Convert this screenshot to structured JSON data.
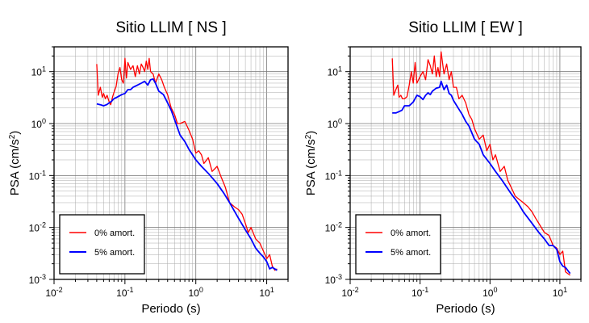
{
  "chart_data": [
    {
      "type": "line",
      "title": "Sitio LLIM [ NS ]",
      "xlabel": "Periodo (s)",
      "ylabel_text": "PSA (cm/s",
      "ylabel_sup": "2",
      "ylabel_close": ")",
      "x_scale": "log",
      "y_scale": "log",
      "xlim": [
        0.01,
        20
      ],
      "ylim": [
        0.001,
        30
      ],
      "grid": true,
      "legend_position": "bottom-left",
      "x_tick_labels": [
        {
          "value": 0.01,
          "base": "10",
          "exp": "-2"
        },
        {
          "value": 0.1,
          "base": "10",
          "exp": "-1"
        },
        {
          "value": 1,
          "base": "10",
          "exp": "0"
        },
        {
          "value": 10,
          "base": "10",
          "exp": "1"
        }
      ],
      "y_tick_labels": [
        {
          "value": 0.001,
          "base": "10",
          "exp": "-3"
        },
        {
          "value": 0.01,
          "base": "10",
          "exp": "-2"
        },
        {
          "value": 0.1,
          "base": "10",
          "exp": "-1"
        },
        {
          "value": 1,
          "base": "10",
          "exp": "0"
        },
        {
          "value": 10,
          "base": "10",
          "exp": "1"
        }
      ],
      "series": [
        {
          "name": "0% amort.",
          "color": "#ff0000",
          "x": [
            0.04,
            0.042,
            0.045,
            0.048,
            0.05,
            0.053,
            0.056,
            0.06,
            0.063,
            0.067,
            0.071,
            0.075,
            0.08,
            0.085,
            0.09,
            0.095,
            0.1,
            0.105,
            0.11,
            0.12,
            0.13,
            0.14,
            0.15,
            0.16,
            0.17,
            0.18,
            0.19,
            0.2,
            0.21,
            0.22,
            0.23,
            0.25,
            0.27,
            0.3,
            0.33,
            0.36,
            0.4,
            0.45,
            0.5,
            0.55,
            0.6,
            0.7,
            0.8,
            0.9,
            1.0,
            1.1,
            1.2,
            1.3,
            1.5,
            1.7,
            2.0,
            2.3,
            2.6,
            3.0,
            3.5,
            4.0,
            4.5,
            5.0,
            5.5,
            6.0,
            7.0,
            8.0,
            9.0,
            10,
            11,
            12,
            13,
            14
          ],
          "y": [
            14,
            3.5,
            5,
            3.2,
            3.8,
            3,
            3.5,
            2.6,
            2.3,
            3.3,
            4.2,
            5.2,
            9,
            12,
            7,
            6,
            18,
            7.5,
            15,
            11,
            13,
            8,
            13,
            9,
            14,
            12,
            10,
            16,
            11,
            18,
            10,
            9,
            6,
            9,
            7,
            5,
            3.6,
            2.0,
            1.5,
            1.0,
            1.0,
            1.1,
            0.75,
            0.5,
            0.27,
            0.3,
            0.25,
            0.17,
            0.22,
            0.12,
            0.15,
            0.09,
            0.06,
            0.03,
            0.025,
            0.022,
            0.018,
            0.012,
            0.008,
            0.01,
            0.006,
            0.005,
            0.0035,
            0.0025,
            0.003,
            0.0018,
            0.0015,
            0.0016
          ]
        },
        {
          "name": "5% amort.",
          "color": "#0000ff",
          "x": [
            0.04,
            0.045,
            0.05,
            0.055,
            0.06,
            0.065,
            0.07,
            0.08,
            0.09,
            0.1,
            0.11,
            0.12,
            0.13,
            0.15,
            0.17,
            0.19,
            0.21,
            0.23,
            0.25,
            0.27,
            0.3,
            0.35,
            0.4,
            0.45,
            0.5,
            0.6,
            0.7,
            0.8,
            1.0,
            1.2,
            1.5,
            2.0,
            2.5,
            3.0,
            4.0,
            5.0,
            6.0,
            7.0,
            8.0,
            9.0,
            10,
            11,
            12,
            14
          ],
          "y": [
            2.4,
            2.3,
            2.2,
            2.3,
            2.5,
            2.7,
            3.0,
            3.3,
            3.6,
            3.8,
            4.5,
            4.5,
            5.0,
            5.5,
            6.0,
            6.5,
            5.5,
            7.0,
            7.2,
            6.0,
            4.2,
            3.6,
            2.5,
            1.8,
            1.2,
            0.6,
            0.45,
            0.32,
            0.2,
            0.15,
            0.11,
            0.07,
            0.045,
            0.03,
            0.015,
            0.009,
            0.006,
            0.004,
            0.0032,
            0.0027,
            0.0022,
            0.0016,
            0.0017,
            0.0015
          ]
        }
      ]
    },
    {
      "type": "line",
      "title": "Sitio LLIM [ EW ]",
      "xlabel": "Periodo (s)",
      "ylabel_text": "PSA (cm/s",
      "ylabel_sup": "2",
      "ylabel_close": ")",
      "x_scale": "log",
      "y_scale": "log",
      "xlim": [
        0.01,
        20
      ],
      "ylim": [
        0.001,
        30
      ],
      "grid": true,
      "legend_position": "bottom-left",
      "x_tick_labels": [
        {
          "value": 0.01,
          "base": "10",
          "exp": "-2"
        },
        {
          "value": 0.1,
          "base": "10",
          "exp": "-1"
        },
        {
          "value": 1,
          "base": "10",
          "exp": "0"
        },
        {
          "value": 10,
          "base": "10",
          "exp": "1"
        }
      ],
      "y_tick_labels": [
        {
          "value": 0.001,
          "base": "10",
          "exp": "-3"
        },
        {
          "value": 0.01,
          "base": "10",
          "exp": "-2"
        },
        {
          "value": 0.1,
          "base": "10",
          "exp": "-1"
        },
        {
          "value": 1,
          "base": "10",
          "exp": "0"
        },
        {
          "value": 10,
          "base": "10",
          "exp": "1"
        }
      ],
      "series": [
        {
          "name": "0% amort.",
          "color": "#ff0000",
          "x": [
            0.04,
            0.042,
            0.045,
            0.048,
            0.05,
            0.053,
            0.056,
            0.06,
            0.065,
            0.07,
            0.075,
            0.08,
            0.085,
            0.09,
            0.1,
            0.11,
            0.12,
            0.13,
            0.14,
            0.15,
            0.16,
            0.17,
            0.18,
            0.19,
            0.2,
            0.22,
            0.24,
            0.26,
            0.28,
            0.3,
            0.33,
            0.36,
            0.4,
            0.45,
            0.5,
            0.55,
            0.6,
            0.7,
            0.8,
            0.9,
            1.0,
            1.1,
            1.2,
            1.4,
            1.6,
            1.8,
            2.0,
            2.3,
            2.6,
            3.0,
            3.5,
            4.0,
            4.5,
            5.0,
            6.0,
            7.0,
            8.0,
            9.0,
            10,
            11,
            12,
            14
          ],
          "y": [
            18,
            3.5,
            4.5,
            5.5,
            3.2,
            3.5,
            3.0,
            3.0,
            3.3,
            5.5,
            10,
            6.0,
            15,
            6.0,
            8.0,
            10,
            7.0,
            17,
            13,
            9,
            20,
            8,
            12,
            8,
            24,
            9,
            14,
            7,
            10,
            5,
            5,
            3,
            3.5,
            2.5,
            1.5,
            1.2,
            0.8,
            0.5,
            0.6,
            0.3,
            0.4,
            0.2,
            0.25,
            0.12,
            0.15,
            0.08,
            0.06,
            0.04,
            0.035,
            0.03,
            0.025,
            0.02,
            0.015,
            0.012,
            0.008,
            0.007,
            0.0045,
            0.004,
            0.003,
            0.0035,
            0.0014,
            0.0012
          ]
        },
        {
          "name": "5% amort.",
          "color": "#0000ff",
          "x": [
            0.04,
            0.045,
            0.05,
            0.055,
            0.06,
            0.07,
            0.08,
            0.09,
            0.1,
            0.11,
            0.12,
            0.13,
            0.14,
            0.15,
            0.17,
            0.19,
            0.2,
            0.22,
            0.24,
            0.26,
            0.28,
            0.3,
            0.35,
            0.4,
            0.45,
            0.5,
            0.6,
            0.7,
            0.8,
            1.0,
            1.2,
            1.5,
            2.0,
            2.5,
            3.0,
            4.0,
            5.0,
            6.0,
            7.0,
            8.0,
            9.0,
            10,
            11,
            12,
            14
          ],
          "y": [
            1.6,
            1.6,
            1.7,
            1.8,
            2.2,
            2.2,
            2.6,
            3.5,
            3.3,
            2.9,
            3.5,
            3.9,
            3.6,
            4.2,
            4.8,
            5.0,
            6.5,
            4.5,
            5.5,
            3.8,
            3.5,
            2.8,
            2.0,
            1.5,
            1.1,
            0.9,
            0.5,
            0.4,
            0.25,
            0.17,
            0.12,
            0.08,
            0.045,
            0.03,
            0.02,
            0.012,
            0.008,
            0.006,
            0.0045,
            0.0045,
            0.0038,
            0.0022,
            0.0018,
            0.0017,
            0.0013
          ]
        }
      ]
    }
  ]
}
